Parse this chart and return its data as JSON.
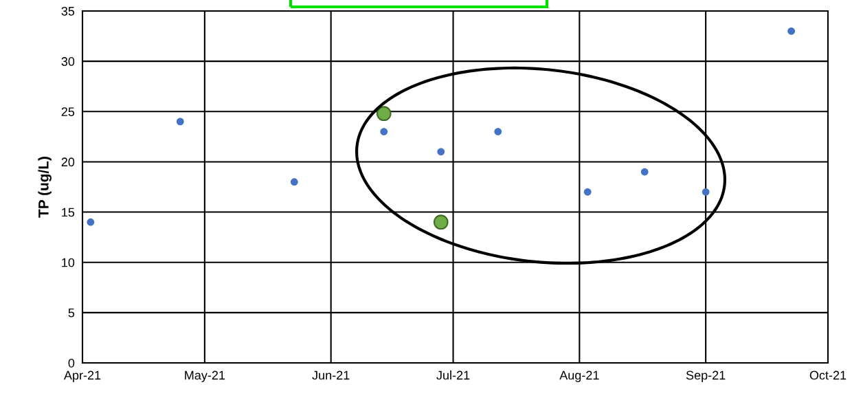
{
  "chart_data": {
    "type": "scatter",
    "ylabel": "TP (ug/L)",
    "marker": "circle",
    "grid": true,
    "xlim": [
      "2021-04-01",
      "2021-10-01"
    ],
    "xticks": [
      {
        "value": "2021-04-01",
        "label": "Apr-21"
      },
      {
        "value": "2021-05-01",
        "label": "May-21"
      },
      {
        "value": "2021-06-01",
        "label": "Jun-21"
      },
      {
        "value": "2021-07-01",
        "label": "Jul-21"
      },
      {
        "value": "2021-08-01",
        "label": "Aug-21"
      },
      {
        "value": "2021-09-01",
        "label": "Sep-21"
      },
      {
        "value": "2021-10-01",
        "label": "Oct-21"
      }
    ],
    "ylim": [
      0,
      35
    ],
    "yticks": [
      0,
      5,
      10,
      15,
      20,
      25,
      30,
      35
    ],
    "series": [
      {
        "color": "#4472c4",
        "x": [
          "2021-04-03",
          "2021-04-25",
          "2021-05-23",
          "2021-06-14",
          "2021-06-28",
          "2021-07-12",
          "2021-08-03",
          "2021-08-17",
          "2021-09-01",
          "2021-09-22"
        ],
        "values": [
          14,
          24,
          18,
          23,
          21,
          23,
          17,
          19,
          17,
          33
        ]
      },
      {
        "color": "#70ad47",
        "x": [
          "2021-06-14",
          "2021-06-28"
        ],
        "values": [
          24.8,
          14
        ]
      }
    ]
  }
}
